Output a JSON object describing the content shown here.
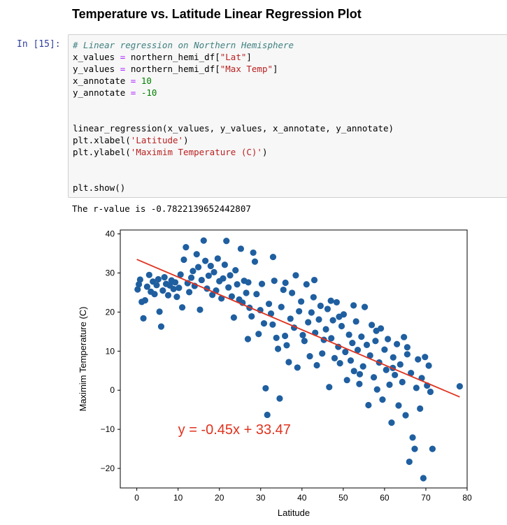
{
  "heading": "Temperature vs. Latitude Linear Regression Plot",
  "cell": {
    "prompt": "In [15]:",
    "code": {
      "comment": "# Linear regression on Northern Hemisphere",
      "line2": {
        "var": "x_values",
        "op": "=",
        "obj": "northern_hemi_df[",
        "str": "\"Lat\"",
        "end": "]"
      },
      "line3": {
        "var": "y_values",
        "op": "=",
        "obj": "northern_hemi_df[",
        "str": "\"Max Temp\"",
        "end": "]"
      },
      "line4": {
        "var": "x_annotate",
        "op": "=",
        "num": "10"
      },
      "line5": {
        "var": "y_annotate",
        "op": "=",
        "num": "-10"
      },
      "line6": "linear_regression(x_values, y_values, x_annotate, y_annotate)",
      "line7": {
        "pre": "plt.xlabel(",
        "str": "'Latitude'",
        "end": ")"
      },
      "line8": {
        "pre": "plt.ylabel(",
        "str": "'Maximim Temperature (C)'",
        "end": ")"
      },
      "line9": "plt.show()"
    },
    "output": "The r-value is -0.7822139652442807"
  },
  "chart_data": {
    "type": "scatter",
    "xlabel": "Latitude",
    "ylabel": "Maximim Temperature (C)",
    "xlim": [
      -4,
      80
    ],
    "ylim": [
      -25,
      41
    ],
    "xticks": [
      0,
      10,
      20,
      30,
      40,
      50,
      60,
      70,
      80
    ],
    "yticks": [
      -20,
      -10,
      0,
      10,
      20,
      30,
      40
    ],
    "annotation": "y = -0.45x + 33.47",
    "annotation_pos": [
      10,
      -10
    ],
    "regression": {
      "slope": -0.45,
      "intercept": 33.47
    },
    "x_range": [
      0,
      78.2
    ],
    "point_color": "#1f5fa0",
    "line_color": "#e0321e",
    "points": [
      [
        0.2,
        25.8
      ],
      [
        0.5,
        27.1
      ],
      [
        0.8,
        28.3
      ],
      [
        1.2,
        22.6
      ],
      [
        1.6,
        18.4
      ],
      [
        2.0,
        23.0
      ],
      [
        2.5,
        26.5
      ],
      [
        3.0,
        29.5
      ],
      [
        3.4,
        25.2
      ],
      [
        3.9,
        27.8
      ],
      [
        4.3,
        24.6
      ],
      [
        4.8,
        26.9
      ],
      [
        5.2,
        28.4
      ],
      [
        5.5,
        20.1
      ],
      [
        5.9,
        16.3
      ],
      [
        6.3,
        25.5
      ],
      [
        6.7,
        28.9
      ],
      [
        7.1,
        27.2
      ],
      [
        7.6,
        24.3
      ],
      [
        8.0,
        26.8
      ],
      [
        8.4,
        28.1
      ],
      [
        8.9,
        25.9
      ],
      [
        9.3,
        27.6
      ],
      [
        9.7,
        23.9
      ],
      [
        10.2,
        26.2
      ],
      [
        10.6,
        29.6
      ],
      [
        11.0,
        21.2
      ],
      [
        11.4,
        33.4
      ],
      [
        11.9,
        36.6
      ],
      [
        12.3,
        27.4
      ],
      [
        12.7,
        25.1
      ],
      [
        13.2,
        28.8
      ],
      [
        13.6,
        30.5
      ],
      [
        14.0,
        26.7
      ],
      [
        14.5,
        34.8
      ],
      [
        14.9,
        31.5
      ],
      [
        15.3,
        20.6
      ],
      [
        15.7,
        28.2
      ],
      [
        16.2,
        38.3
      ],
      [
        16.6,
        33.1
      ],
      [
        17.0,
        26.0
      ],
      [
        17.4,
        29.3
      ],
      [
        17.9,
        31.8
      ],
      [
        18.3,
        24.4
      ],
      [
        18.7,
        30.2
      ],
      [
        19.2,
        25.5
      ],
      [
        19.6,
        33.7
      ],
      [
        20.0,
        27.9
      ],
      [
        20.5,
        23.5
      ],
      [
        20.9,
        28.6
      ],
      [
        21.3,
        32.1
      ],
      [
        21.7,
        38.2
      ],
      [
        22.2,
        26.3
      ],
      [
        22.6,
        29.4
      ],
      [
        23.0,
        24.0
      ],
      [
        23.5,
        18.6
      ],
      [
        23.9,
        30.7
      ],
      [
        24.3,
        27.1
      ],
      [
        24.8,
        23.2
      ],
      [
        25.2,
        36.2
      ],
      [
        25.6,
        22.4
      ],
      [
        26.0,
        28.0
      ],
      [
        26.5,
        24.9
      ],
      [
        26.9,
        13.1
      ],
      [
        27.3,
        21.1
      ],
      [
        27.8,
        18.9
      ],
      [
        28.2,
        35.2
      ],
      [
        28.6,
        32.9
      ],
      [
        29.0,
        24.6
      ],
      [
        29.5,
        14.4
      ],
      [
        29.9,
        20.5
      ],
      [
        30.3,
        27.2
      ],
      [
        30.8,
        17.1
      ],
      [
        31.2,
        0.5
      ],
      [
        31.6,
        -6.3
      ],
      [
        32.0,
        22.1
      ],
      [
        32.5,
        19.6
      ],
      [
        32.9,
        16.8
      ],
      [
        33.3,
        28.0
      ],
      [
        33.8,
        13.4
      ],
      [
        34.2,
        10.6
      ],
      [
        34.6,
        -2.1
      ],
      [
        35.0,
        21.3
      ],
      [
        35.5,
        25.7
      ],
      [
        35.9,
        13.9
      ],
      [
        36.3,
        11.5
      ],
      [
        36.8,
        7.2
      ],
      [
        37.2,
        18.3
      ],
      [
        37.6,
        24.9
      ],
      [
        38.1,
        16.0
      ],
      [
        38.5,
        29.4
      ],
      [
        38.9,
        5.8
      ],
      [
        39.3,
        20.2
      ],
      [
        39.8,
        22.7
      ],
      [
        40.2,
        14.1
      ],
      [
        40.6,
        12.6
      ],
      [
        41.1,
        27.1
      ],
      [
        41.5,
        17.4
      ],
      [
        41.9,
        8.7
      ],
      [
        42.3,
        19.9
      ],
      [
        42.8,
        23.8
      ],
      [
        43.2,
        14.7
      ],
      [
        43.6,
        6.4
      ],
      [
        44.1,
        18.1
      ],
      [
        44.5,
        21.6
      ],
      [
        44.9,
        9.4
      ],
      [
        45.3,
        12.9
      ],
      [
        45.8,
        15.6
      ],
      [
        46.2,
        20.8
      ],
      [
        46.6,
        0.8
      ],
      [
        47.1,
        13.3
      ],
      [
        47.5,
        17.9
      ],
      [
        47.9,
        8.2
      ],
      [
        48.4,
        22.5
      ],
      [
        48.8,
        11.1
      ],
      [
        49.2,
        6.9
      ],
      [
        49.6,
        16.4
      ],
      [
        50.1,
        19.4
      ],
      [
        50.5,
        9.8
      ],
      [
        50.9,
        2.6
      ],
      [
        51.4,
        14.2
      ],
      [
        51.8,
        7.6
      ],
      [
        52.2,
        12.1
      ],
      [
        52.6,
        4.9
      ],
      [
        53.1,
        17.6
      ],
      [
        53.5,
        10.3
      ],
      [
        53.9,
        1.6
      ],
      [
        54.4,
        13.7
      ],
      [
        54.8,
        6.1
      ],
      [
        55.2,
        21.3
      ],
      [
        55.7,
        11.6
      ],
      [
        56.1,
        -3.8
      ],
      [
        56.5,
        8.9
      ],
      [
        56.9,
        16.7
      ],
      [
        57.4,
        3.3
      ],
      [
        57.8,
        12.6
      ],
      [
        58.2,
        0.2
      ],
      [
        58.7,
        7.1
      ],
      [
        59.1,
        15.8
      ],
      [
        59.5,
        -2.4
      ],
      [
        60.0,
        10.4
      ],
      [
        60.4,
        5.2
      ],
      [
        60.8,
        13.1
      ],
      [
        61.2,
        1.4
      ],
      [
        61.7,
        -8.3
      ],
      [
        62.1,
        8.4
      ],
      [
        62.5,
        3.9
      ],
      [
        63.0,
        11.8
      ],
      [
        63.4,
        -3.9
      ],
      [
        63.8,
        6.6
      ],
      [
        64.3,
        2.1
      ],
      [
        64.7,
        13.6
      ],
      [
        65.1,
        -6.4
      ],
      [
        65.5,
        9.2
      ],
      [
        66.0,
        -18.3
      ],
      [
        66.4,
        4.4
      ],
      [
        66.8,
        -12.1
      ],
      [
        67.3,
        -15.0
      ],
      [
        67.7,
        0.6
      ],
      [
        68.1,
        7.9
      ],
      [
        68.6,
        -4.7
      ],
      [
        69.0,
        3.1
      ],
      [
        69.4,
        -22.5
      ],
      [
        69.8,
        8.5
      ],
      [
        70.3,
        1.2
      ],
      [
        70.7,
        6.3
      ],
      [
        71.1,
        -0.4
      ],
      [
        71.6,
        -15.0
      ],
      [
        78.2,
        1.0
      ],
      [
        36.0,
        27.5
      ],
      [
        43.0,
        28.2
      ],
      [
        47.0,
        22.9
      ],
      [
        52.5,
        21.7
      ],
      [
        58.0,
        15.2
      ],
      [
        65.5,
        11.0
      ],
      [
        62.0,
        5.7
      ],
      [
        49.0,
        18.8
      ],
      [
        54.0,
        4.1
      ],
      [
        33.0,
        34.1
      ],
      [
        27.0,
        27.6
      ]
    ]
  }
}
